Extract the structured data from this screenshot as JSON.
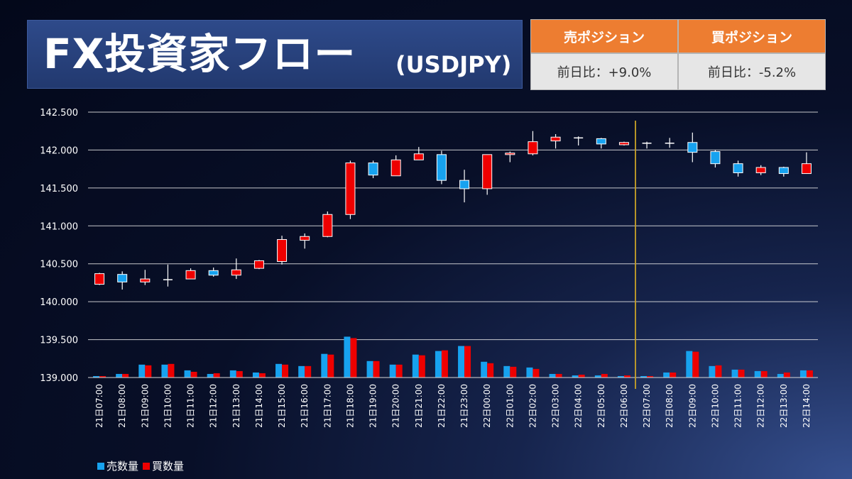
{
  "title": {
    "main": "FX投資家フロー",
    "pair": "(USDJPY)"
  },
  "positions": [
    {
      "label": "売ポジション",
      "value": "前日比：+9.0%"
    },
    {
      "label": "買ポジション",
      "value": "前日比：-5.2%"
    }
  ],
  "colors": {
    "sell": "#17a2ef",
    "buy": "#ee0000",
    "header": "#ed7d31",
    "marker_line": "#c9a227",
    "grid": "#e8e8e8"
  },
  "chart_data": {
    "type": "candlestick+bar",
    "ylim": [
      139.0,
      142.5
    ],
    "yticks": [
      "139.000",
      "139.500",
      "140.000",
      "140.500",
      "141.000",
      "141.500",
      "142.000",
      "142.500"
    ],
    "grid": true,
    "legend_position": "bottom-left",
    "marker_line_after": "22日06:00",
    "categories": [
      "21日07:00",
      "21日08:00",
      "21日09:00",
      "21日10:00",
      "21日11:00",
      "21日12:00",
      "21日13:00",
      "21日14:00",
      "21日15:00",
      "21日16:00",
      "21日17:00",
      "21日18:00",
      "21日19:00",
      "21日20:00",
      "21日21:00",
      "21日22:00",
      "21日23:00",
      "22日00:00",
      "22日01:00",
      "22日02:00",
      "22日03:00",
      "22日04:00",
      "22日05:00",
      "22日06:00",
      "22日07:00",
      "22日08:00",
      "22日09:00",
      "22日10:00",
      "22日11:00",
      "22日12:00",
      "22日13:00",
      "22日14:00"
    ],
    "candles": [
      {
        "color": "buy",
        "top": 140.37,
        "bottom": 140.23,
        "high": 140.38,
        "low": 140.22
      },
      {
        "color": "sell",
        "top": 140.36,
        "bottom": 140.26,
        "high": 140.4,
        "low": 140.16
      },
      {
        "color": "buy",
        "top": 140.3,
        "bottom": 140.26,
        "high": 140.42,
        "low": 140.22
      },
      {
        "color": "cross",
        "top": 140.29,
        "bottom": 140.29,
        "high": 140.49,
        "low": 140.2
      },
      {
        "color": "buy",
        "top": 140.41,
        "bottom": 140.3,
        "high": 140.44,
        "low": 140.3
      },
      {
        "color": "sell",
        "top": 140.41,
        "bottom": 140.35,
        "high": 140.45,
        "low": 140.33
      },
      {
        "color": "buy",
        "top": 140.42,
        "bottom": 140.35,
        "high": 140.57,
        "low": 140.3
      },
      {
        "color": "buy",
        "top": 140.54,
        "bottom": 140.44,
        "high": 140.55,
        "low": 140.43
      },
      {
        "color": "buy",
        "top": 140.82,
        "bottom": 140.53,
        "high": 140.87,
        "low": 140.49
      },
      {
        "color": "buy",
        "top": 140.86,
        "bottom": 140.81,
        "high": 140.9,
        "low": 140.7
      },
      {
        "color": "buy",
        "top": 141.15,
        "bottom": 140.86,
        "high": 141.19,
        "low": 140.85
      },
      {
        "color": "buy",
        "top": 141.83,
        "bottom": 141.15,
        "high": 141.86,
        "low": 141.09
      },
      {
        "color": "sell",
        "top": 141.83,
        "bottom": 141.67,
        "high": 141.86,
        "low": 141.63
      },
      {
        "color": "buy",
        "top": 141.87,
        "bottom": 141.66,
        "high": 141.93,
        "low": 141.66
      },
      {
        "color": "buy",
        "top": 141.95,
        "bottom": 141.87,
        "high": 142.04,
        "low": 141.87
      },
      {
        "color": "sell",
        "top": 141.94,
        "bottom": 141.6,
        "high": 141.99,
        "low": 141.55
      },
      {
        "color": "sell",
        "top": 141.6,
        "bottom": 141.49,
        "high": 141.74,
        "low": 141.31
      },
      {
        "color": "buy",
        "top": 141.94,
        "bottom": 141.49,
        "high": 141.94,
        "low": 141.41
      },
      {
        "color": "buy",
        "top": 141.96,
        "bottom": 141.94,
        "high": 141.98,
        "low": 141.84
      },
      {
        "color": "buy",
        "top": 142.11,
        "bottom": 141.95,
        "high": 142.25,
        "low": 141.93
      },
      {
        "color": "buy",
        "top": 142.17,
        "bottom": 142.12,
        "high": 142.21,
        "low": 142.02
      },
      {
        "color": "cross",
        "top": 142.16,
        "bottom": 142.16,
        "high": 142.18,
        "low": 142.06
      },
      {
        "color": "sell",
        "top": 142.15,
        "bottom": 142.08,
        "high": 142.16,
        "low": 142.02
      },
      {
        "color": "buy",
        "top": 142.1,
        "bottom": 142.07,
        "high": 142.11,
        "low": 142.06
      },
      {
        "color": "cross",
        "top": 142.09,
        "bottom": 142.09,
        "high": 142.11,
        "low": 142.02
      },
      {
        "color": "cross",
        "top": 142.09,
        "bottom": 142.09,
        "high": 142.16,
        "low": 142.03
      },
      {
        "color": "sell",
        "top": 142.1,
        "bottom": 141.97,
        "high": 142.23,
        "low": 141.84
      },
      {
        "color": "sell",
        "top": 141.98,
        "bottom": 141.82,
        "high": 142.0,
        "low": 141.77
      },
      {
        "color": "sell",
        "top": 141.82,
        "bottom": 141.7,
        "high": 141.86,
        "low": 141.65
      },
      {
        "color": "buy",
        "top": 141.77,
        "bottom": 141.7,
        "high": 141.8,
        "low": 141.67
      },
      {
        "color": "sell",
        "top": 141.77,
        "bottom": 141.69,
        "high": 141.78,
        "low": 141.65
      },
      {
        "color": "buy",
        "top": 141.82,
        "bottom": 141.69,
        "high": 141.97,
        "low": 141.69
      }
    ],
    "volume_sell": [
      0.02,
      0.05,
      0.18,
      0.18,
      0.1,
      0.05,
      0.1,
      0.07,
      0.19,
      0.16,
      0.33,
      0.57,
      0.23,
      0.18,
      0.32,
      0.37,
      0.44,
      0.22,
      0.16,
      0.14,
      0.05,
      0.03,
      0.03,
      0.02,
      0.02,
      0.07,
      0.37,
      0.16,
      0.11,
      0.09,
      0.05,
      0.1
    ],
    "volume_buy": [
      0.02,
      0.05,
      0.17,
      0.19,
      0.08,
      0.06,
      0.09,
      0.06,
      0.18,
      0.16,
      0.32,
      0.55,
      0.23,
      0.18,
      0.31,
      0.38,
      0.44,
      0.2,
      0.15,
      0.12,
      0.05,
      0.04,
      0.05,
      0.03,
      0.02,
      0.07,
      0.36,
      0.17,
      0.11,
      0.09,
      0.07,
      0.1
    ],
    "legend": [
      "売数量",
      "買数量"
    ]
  }
}
